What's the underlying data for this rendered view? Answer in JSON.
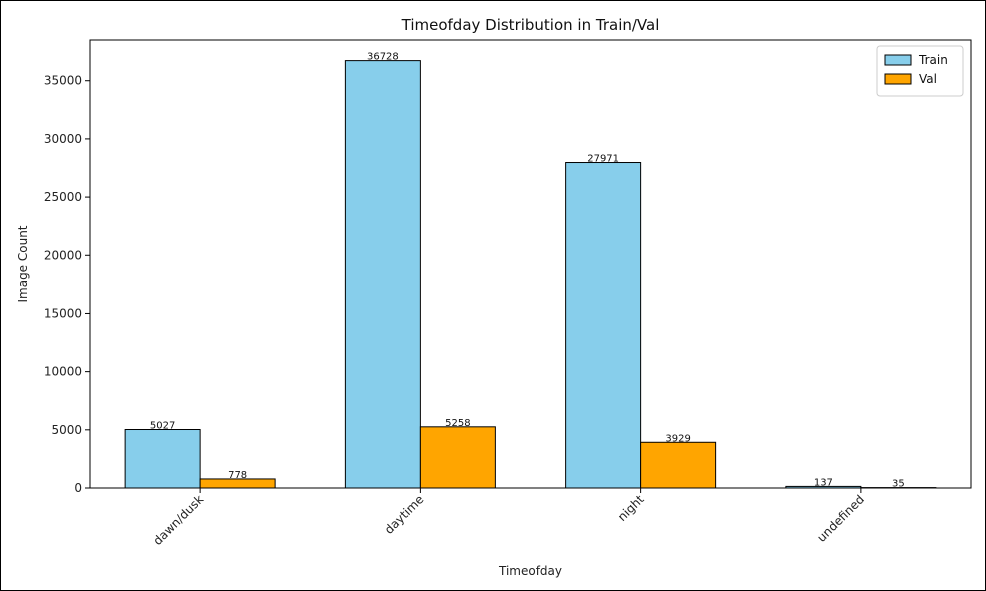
{
  "chart_data": {
    "type": "bar",
    "title": "Timeofday Distribution in Train/Val",
    "xlabel": "Timeofday",
    "ylabel": "Image Count",
    "categories": [
      "dawn/dusk",
      "daytime",
      "night",
      "undefined"
    ],
    "series": [
      {
        "name": "Train",
        "values": [
          5027,
          36728,
          27971,
          137
        ],
        "color": "#87CEEB"
      },
      {
        "name": "Val",
        "values": [
          778,
          5258,
          3929,
          35
        ],
        "color": "#FFA500"
      }
    ],
    "ylim": [
      0,
      38500
    ],
    "yticks": [
      0,
      5000,
      10000,
      15000,
      20000,
      25000,
      30000,
      35000
    ],
    "grid": false,
    "legend": "top-right",
    "xtick_rotation": -45
  }
}
